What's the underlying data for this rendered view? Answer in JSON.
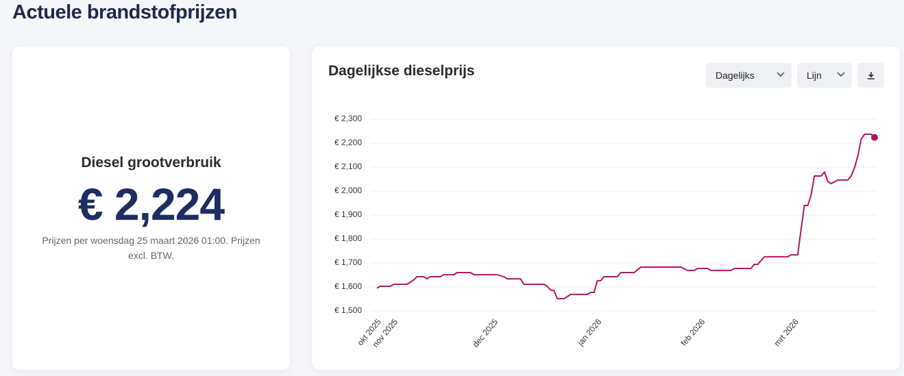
{
  "header": {
    "title": "Actuele brandstofprijzen"
  },
  "price_card": {
    "label": "Diesel grootverbruik",
    "price": "€ 2,224",
    "note": "Prijzen per woensdag 25 maart 2026 01:00. Prijzen excl. BTW."
  },
  "chart_card": {
    "controls": {
      "interval": "Dagelijks",
      "chart_type": "Lijn"
    }
  },
  "chart_data": {
    "type": "line",
    "title": "Dagelijkse dieselprijs",
    "color": "#b5135f",
    "grid": true,
    "end_marker": true,
    "x": [
      0,
      1,
      4,
      5,
      9,
      11,
      12,
      14,
      15,
      16,
      19,
      20,
      23,
      24,
      28,
      29,
      36,
      38,
      39,
      43,
      44,
      50,
      51,
      52,
      53,
      54,
      56,
      57,
      58,
      63,
      64,
      65,
      66,
      67,
      68,
      72,
      73,
      77,
      79,
      91,
      93,
      95,
      96,
      99,
      100,
      106,
      107,
      112,
      113,
      114,
      116,
      123,
      124,
      126,
      127,
      128,
      129,
      130,
      131,
      133,
      134,
      135,
      136,
      138,
      141,
      142,
      143,
      144,
      145,
      146,
      148,
      149
    ],
    "values": [
      1.595,
      1.603,
      1.603,
      1.611,
      1.611,
      1.629,
      1.643,
      1.643,
      1.634,
      1.643,
      1.643,
      1.651,
      1.651,
      1.66,
      1.66,
      1.651,
      1.651,
      1.643,
      1.634,
      1.634,
      1.611,
      1.611,
      1.603,
      1.586,
      1.586,
      1.551,
      1.551,
      1.56,
      1.569,
      1.569,
      1.577,
      1.577,
      1.626,
      1.626,
      1.643,
      1.643,
      1.66,
      1.66,
      1.683,
      1.683,
      1.669,
      1.669,
      1.677,
      1.677,
      1.669,
      1.669,
      1.677,
      1.677,
      1.694,
      1.694,
      1.726,
      1.726,
      1.734,
      1.734,
      1.84,
      1.94,
      1.94,
      1.983,
      2.063,
      2.063,
      2.08,
      2.04,
      2.031,
      2.046,
      2.046,
      2.063,
      2.097,
      2.146,
      2.217,
      2.237,
      2.237,
      2.224
    ],
    "xlim": [
      0,
      149
    ],
    "xticks": [
      {
        "value": 0,
        "label": "okt 2025"
      },
      {
        "value": 5,
        "label": "nov 2025"
      },
      {
        "value": 35,
        "label": "dec 2025"
      },
      {
        "value": 66,
        "label": "jan 2026"
      },
      {
        "value": 97,
        "label": "feb 2026"
      },
      {
        "value": 125,
        "label": "mrt 2026"
      }
    ],
    "ylim": [
      1.5,
      2.3
    ],
    "yticks": [
      {
        "value": 1.5,
        "label": "€ 1,500"
      },
      {
        "value": 1.6,
        "label": "€ 1,600"
      },
      {
        "value": 1.7,
        "label": "€ 1,700"
      },
      {
        "value": 1.8,
        "label": "€ 1,800"
      },
      {
        "value": 1.9,
        "label": "€ 1,900"
      },
      {
        "value": 2.0,
        "label": "€ 2,000"
      },
      {
        "value": 2.1,
        "label": "€ 2,100"
      },
      {
        "value": 2.2,
        "label": "€ 2,200"
      },
      {
        "value": 2.3,
        "label": "€ 2,300"
      }
    ]
  }
}
